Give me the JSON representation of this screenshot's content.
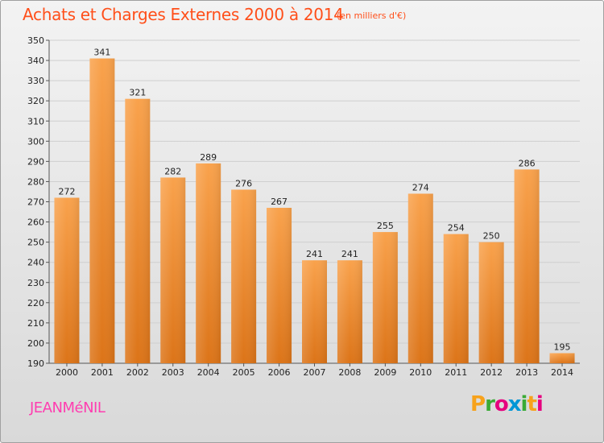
{
  "title": "Achats et Charges Externes 2000 à 2014",
  "subtitle": "(en milliers d'€)",
  "commune": "JEANMéNIL",
  "logo": {
    "letters": [
      "P",
      "r",
      "o",
      "x",
      "i",
      "t",
      "i"
    ],
    "colors": [
      "#f7a21b",
      "#3aaa35",
      "#e6007e",
      "#0096d6",
      "#3aaa35",
      "#f7a21b",
      "#e6007e"
    ]
  },
  "colors": {
    "bar_light": "#f7a650",
    "bar_dark": "#e8842a",
    "accent": "#ff4f1a"
  },
  "chart_data": {
    "type": "bar",
    "categories": [
      "2000",
      "2001",
      "2002",
      "2003",
      "2004",
      "2005",
      "2006",
      "2007",
      "2008",
      "2009",
      "2010",
      "2011",
      "2012",
      "2013",
      "2014"
    ],
    "values": [
      272,
      341,
      321,
      282,
      289,
      276,
      267,
      241,
      241,
      255,
      274,
      254,
      250,
      286,
      195
    ],
    "ylim": [
      190,
      350
    ],
    "yticks": [
      190,
      200,
      210,
      220,
      230,
      240,
      250,
      260,
      270,
      280,
      290,
      300,
      310,
      320,
      330,
      340,
      350
    ],
    "grid": true
  }
}
